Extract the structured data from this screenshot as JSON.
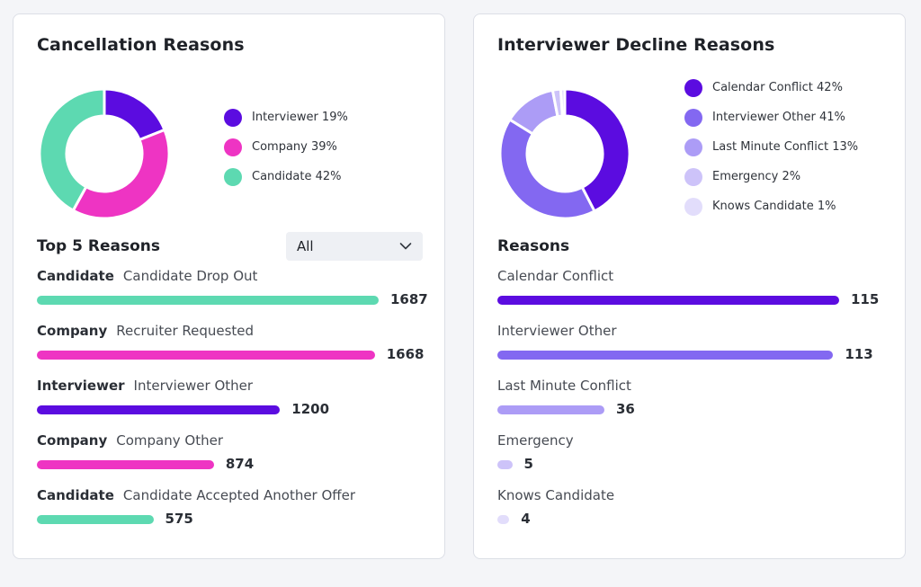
{
  "cancellation": {
    "title": "Cancellation Reasons",
    "legend": [
      {
        "label": "Interviewer 19%",
        "percent": 19,
        "color": "#5b0ce0"
      },
      {
        "label": "Company 39%",
        "percent": 39,
        "color": "#ee34c3"
      },
      {
        "label": "Candidate 42%",
        "percent": 42,
        "color": "#5dd9b1"
      }
    ],
    "top_title": "Top 5 Reasons",
    "filter": {
      "value": "All",
      "icon": "chevron-down-icon"
    },
    "max_value": 1687,
    "reasons": [
      {
        "category": "Candidate",
        "reason": "Candidate Drop Out",
        "value": 1687,
        "color": "#5dd9b1"
      },
      {
        "category": "Company",
        "reason": "Recruiter Requested",
        "value": 1668,
        "color": "#ee34c3"
      },
      {
        "category": "Interviewer",
        "reason": "Interviewer Other",
        "value": 1200,
        "color": "#5b0ce0"
      },
      {
        "category": "Company",
        "reason": "Company Other",
        "value": 874,
        "color": "#ee34c3"
      },
      {
        "category": "Candidate",
        "reason": "Candidate Accepted Another Offer",
        "value": 575,
        "color": "#5dd9b1"
      }
    ]
  },
  "decline": {
    "title": "Interviewer Decline Reasons",
    "legend": [
      {
        "label": "Calendar Conflict 42%",
        "percent": 42,
        "color": "#5b0ce0"
      },
      {
        "label": "Interviewer Other 41%",
        "percent": 41,
        "color": "#8368f1"
      },
      {
        "label": "Last Minute Conflict 13%",
        "percent": 13,
        "color": "#ac9cf6"
      },
      {
        "label": "Emergency 2%",
        "percent": 2,
        "color": "#cdc3f9"
      },
      {
        "label": "Knows Candidate 1%",
        "percent": 1,
        "color": "#e2ddfb"
      }
    ],
    "reasons_title": "Reasons",
    "max_value": 115,
    "reasons": [
      {
        "reason": "Calendar Conflict",
        "value": 115,
        "color": "#5b0ce0"
      },
      {
        "reason": "Interviewer Other",
        "value": 113,
        "color": "#8368f1"
      },
      {
        "reason": "Last Minute Conflict",
        "value": 36,
        "color": "#ac9cf6"
      },
      {
        "reason": "Emergency",
        "value": 5,
        "color": "#cdc3f9"
      },
      {
        "reason": "Knows Candidate",
        "value": 4,
        "color": "#e2ddfb"
      }
    ]
  }
}
